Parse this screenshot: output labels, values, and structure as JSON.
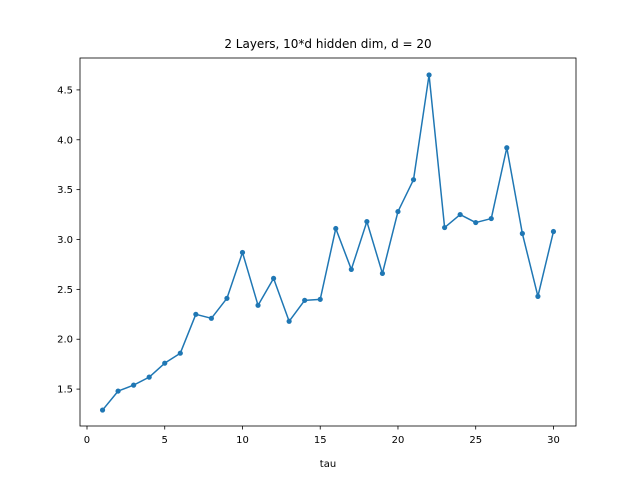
{
  "chart_data": {
    "type": "line",
    "title": "2 Layers, 10*d hidden dim, d = 20",
    "xlabel": "tau",
    "ylabel": "",
    "xlim": [
      -0.45,
      31.45
    ],
    "ylim": [
      1.13,
      4.82
    ],
    "xticks": [
      0,
      5,
      10,
      15,
      20,
      25,
      30
    ],
    "yticks": [
      1.5,
      2.0,
      2.5,
      3.0,
      3.5,
      4.0,
      4.5
    ],
    "xtick_labels": [
      "0",
      "5",
      "10",
      "15",
      "20",
      "25",
      "30"
    ],
    "ytick_labels": [
      "1.5",
      "2.0",
      "2.5",
      "3.0",
      "3.5",
      "4.0",
      "4.5"
    ],
    "grid": false,
    "color": "#1f77b4",
    "marker": "point",
    "x": [
      1,
      2,
      3,
      4,
      5,
      6,
      7,
      8,
      9,
      10,
      11,
      12,
      13,
      14,
      15,
      16,
      17,
      18,
      19,
      20,
      21,
      22,
      23,
      24,
      25,
      26,
      27,
      28,
      29,
      30
    ],
    "y": [
      1.29,
      1.48,
      1.54,
      1.62,
      1.76,
      1.86,
      2.25,
      2.21,
      2.41,
      2.87,
      2.34,
      2.61,
      2.18,
      2.39,
      2.4,
      3.11,
      2.7,
      3.18,
      2.66,
      3.28,
      3.6,
      4.65,
      3.12,
      3.25,
      3.17,
      3.21,
      3.92,
      3.06,
      2.43,
      3.08
    ]
  }
}
